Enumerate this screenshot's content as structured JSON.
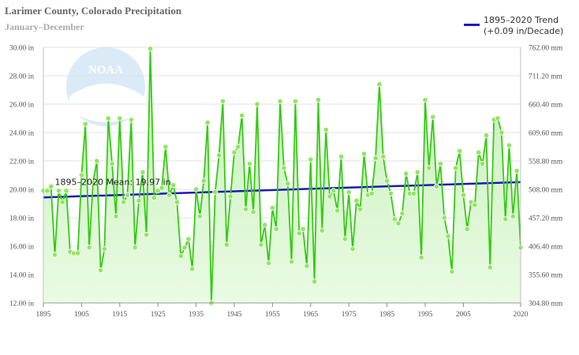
{
  "chart_data": {
    "type": "line",
    "title": "Larimer County, Colorado Precipitation",
    "subtitle": "January–December",
    "x": [
      1895,
      1896,
      1897,
      1898,
      1899,
      1900,
      1901,
      1902,
      1903,
      1904,
      1905,
      1906,
      1907,
      1908,
      1909,
      1910,
      1911,
      1912,
      1913,
      1914,
      1915,
      1916,
      1917,
      1918,
      1919,
      1920,
      1921,
      1922,
      1923,
      1924,
      1925,
      1926,
      1927,
      1928,
      1929,
      1930,
      1931,
      1932,
      1933,
      1934,
      1935,
      1936,
      1937,
      1938,
      1939,
      1940,
      1941,
      1942,
      1943,
      1944,
      1945,
      1946,
      1947,
      1948,
      1949,
      1950,
      1951,
      1952,
      1953,
      1954,
      1955,
      1956,
      1957,
      1958,
      1959,
      1960,
      1961,
      1962,
      1963,
      1964,
      1965,
      1966,
      1967,
      1968,
      1969,
      1970,
      1971,
      1972,
      1973,
      1974,
      1975,
      1976,
      1977,
      1978,
      1979,
      1980,
      1981,
      1982,
      1983,
      1984,
      1985,
      1986,
      1987,
      1988,
      1989,
      1990,
      1991,
      1992,
      1993,
      1994,
      1995,
      1996,
      1997,
      1998,
      1999,
      2000,
      2001,
      2002,
      2003,
      2004,
      2005,
      2006,
      2007,
      2008,
      2009,
      2010,
      2011,
      2012,
      2013,
      2014,
      2015,
      2016,
      2017,
      2018,
      2019,
      2020
    ],
    "series": [
      {
        "values": [
          19.9,
          19.9,
          20.2,
          15.4,
          19.9,
          19.1,
          19.9,
          15.6,
          15.5,
          15.5,
          21.0,
          24.6,
          15.9,
          20.5,
          22.0,
          14.3,
          15.8,
          25.0,
          21.8,
          18.1,
          25.0,
          19.1,
          19.6,
          24.9,
          15.9,
          19.2,
          21.2,
          16.8,
          29.9,
          19.4,
          19.9,
          20.1,
          23.0,
          19.6,
          20.3,
          19.1,
          15.3,
          15.9,
          16.5,
          14.4,
          20.0,
          18.1,
          20.6,
          24.7,
          12.0,
          19.8,
          22.4,
          26.2,
          16.1,
          19.5,
          22.6,
          23.0,
          25.2,
          18.6,
          21.8,
          18.4,
          26.0,
          16.1,
          17.5,
          14.8,
          18.7,
          17.2,
          26.2,
          21.5,
          20.4,
          14.9,
          26.2,
          16.9,
          17.2,
          14.6,
          22.1,
          13.5,
          26.3,
          17.1,
          24.2,
          19.5,
          19.9,
          18.5,
          22.3,
          16.5,
          19.8,
          15.8,
          19.2,
          18.6,
          22.5,
          19.6,
          19.7,
          22.2,
          27.4,
          22.3,
          20.6,
          19.7,
          17.9,
          17.6,
          18.3,
          21.1,
          19.7,
          19.7,
          21.2,
          15.2,
          26.3,
          21.5,
          25.1,
          20.2,
          21.8,
          18.0,
          16.7,
          14.2,
          21.5,
          22.7,
          19.6,
          17.2,
          19.1,
          18.9,
          22.6,
          21.8,
          23.8,
          14.5,
          24.9,
          25.0,
          24.0,
          17.9,
          23.1,
          18.1,
          21.3,
          15.9
        ]
      },
      {
        "name": "1895–2020 Trend",
        "values_from_to": [
          [
            1895,
            19.43
          ],
          [
            2020,
            20.51
          ]
        ]
      }
    ],
    "mean_label": "1895–2020 Mean: 19.97 in",
    "mean_value": 19.97,
    "legend": {
      "label": "1895–2020 Trend",
      "sub": "(+0.09 in/Decade)",
      "position": "top-right"
    },
    "xlim": [
      1895,
      2020
    ],
    "ylim": [
      12,
      30
    ],
    "x_ticks": [
      "1895",
      "1905",
      "1915",
      "1925",
      "1935",
      "1945",
      "1955",
      "1965",
      "1975",
      "1985",
      "1995",
      "2005",
      "2020"
    ],
    "y_ticks_left": [
      "12.00 in",
      "14.00 in",
      "16.00 in",
      "18.00 in",
      "20.00 in",
      "22.00 in",
      "24.00 in",
      "26.00 in",
      "28.00 in",
      "30.00 in"
    ],
    "y_ticks_right": [
      "304.80 mm",
      "355.60 mm",
      "406.40 mm",
      "457.20 mm",
      "508.00 mm",
      "558.80 mm",
      "609.60 mm",
      "660.40 mm",
      "711.20 mm",
      "762.00 mm"
    ],
    "grid": true,
    "watermark_text": "NOAA",
    "colors": {
      "line": "#33cc11",
      "trend": "#1a1ab4",
      "fill_top": "#c8f0bc",
      "fill_bottom": "#e8fae2",
      "marker": "#8ee85c"
    }
  }
}
